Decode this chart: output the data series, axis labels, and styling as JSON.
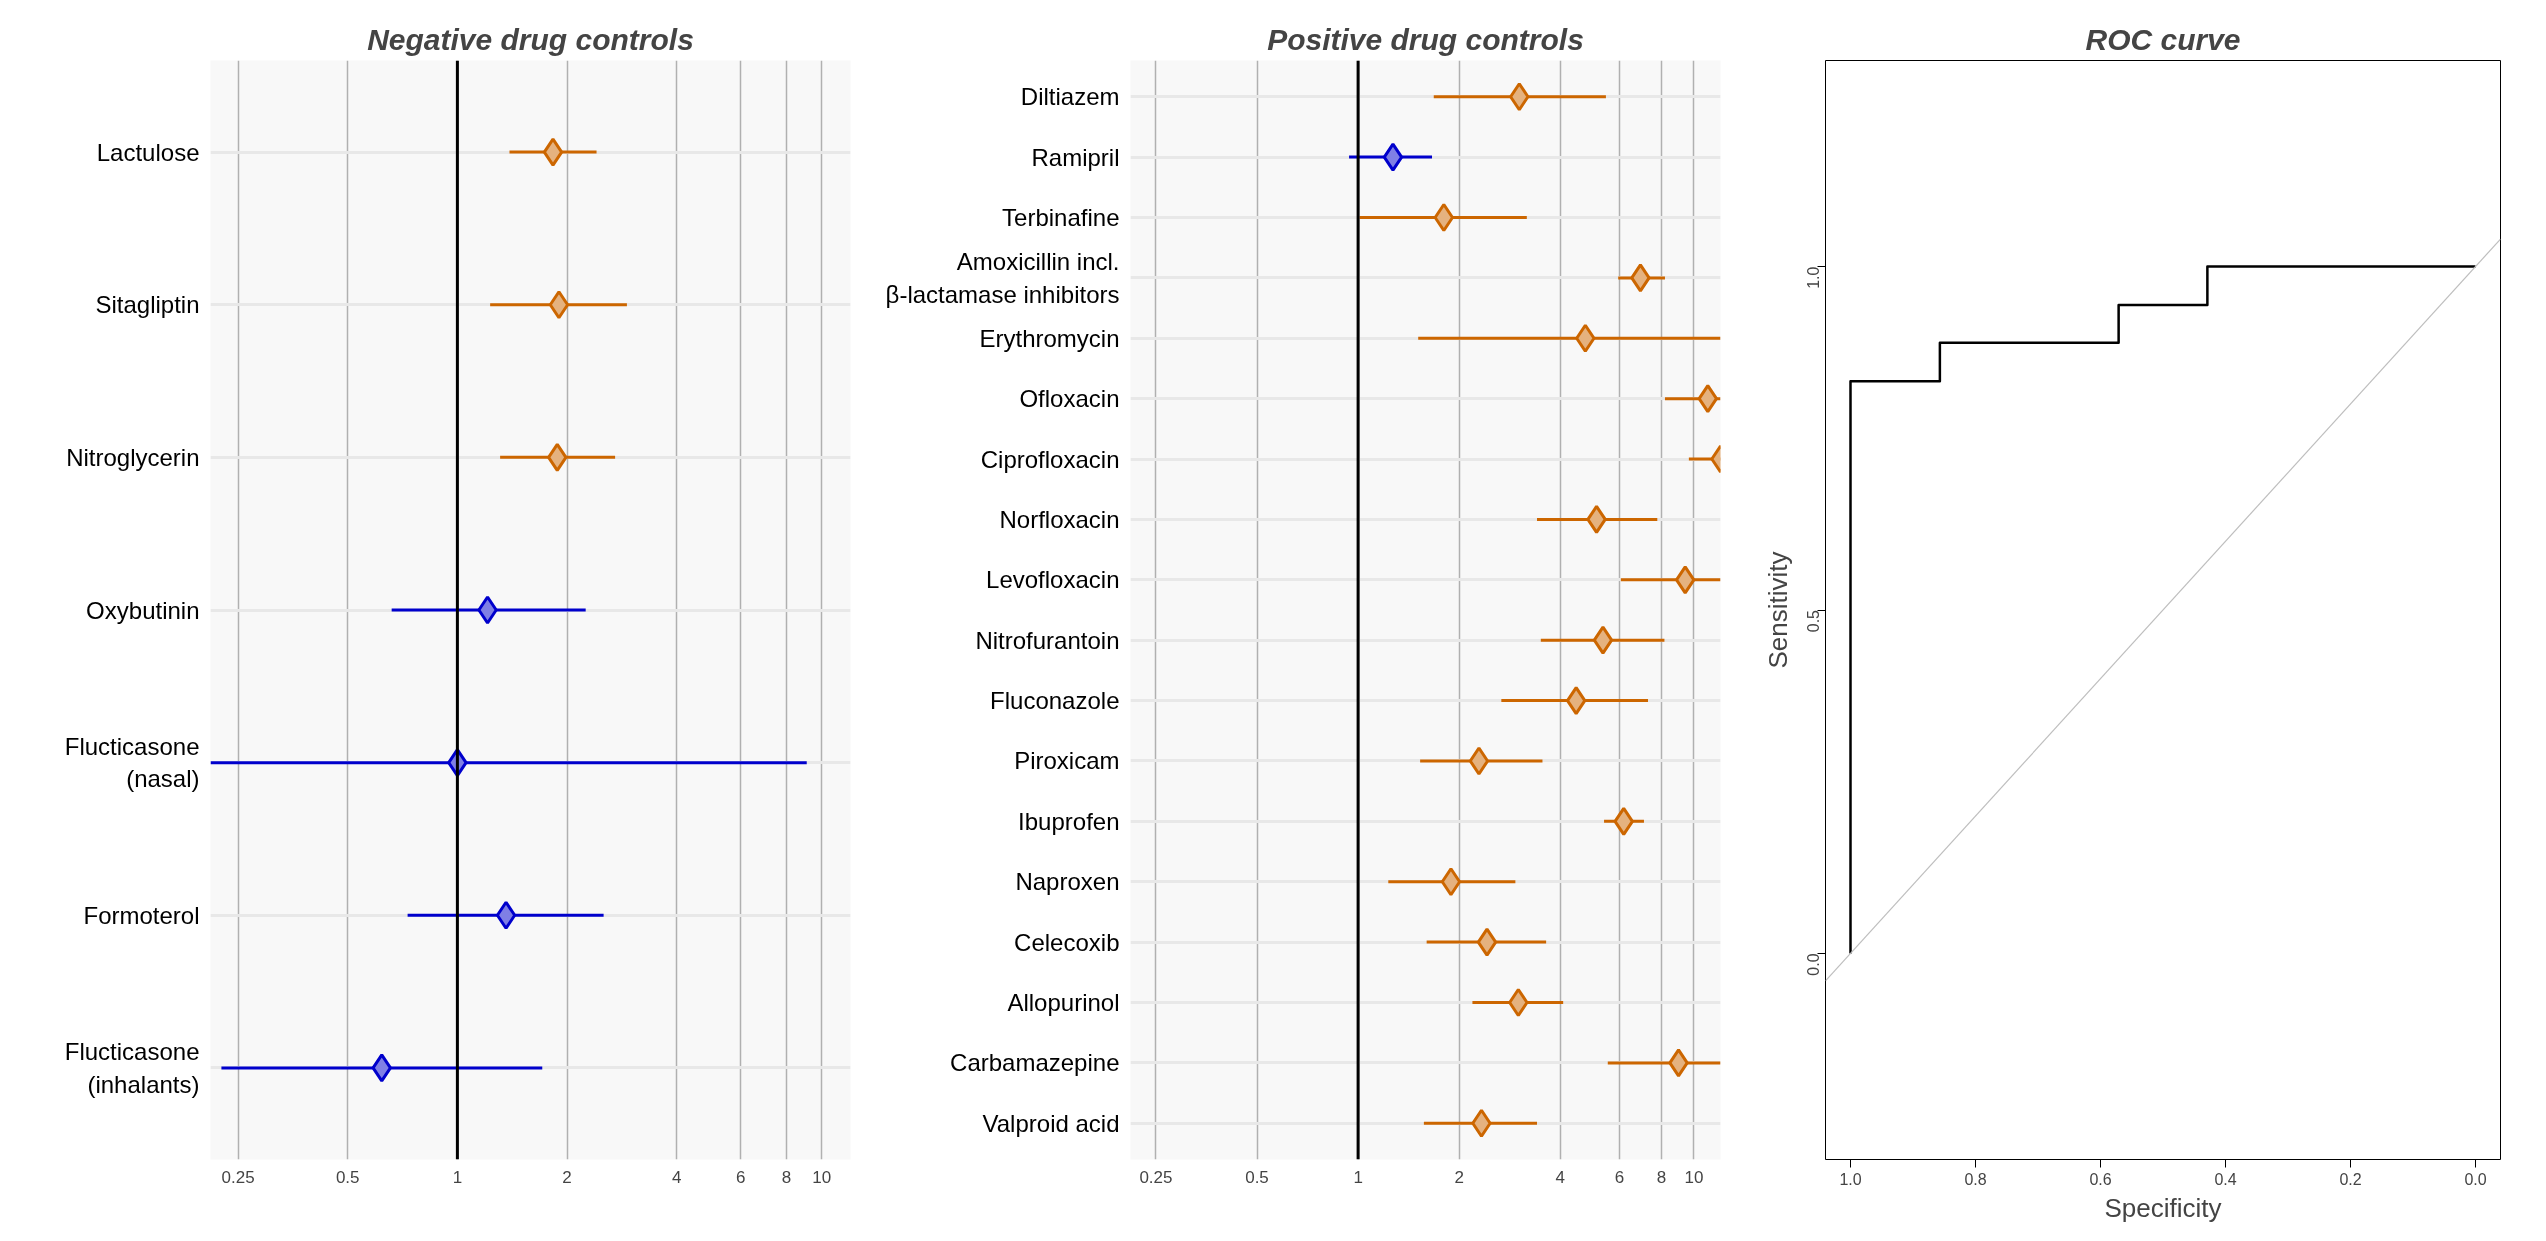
{
  "chart_data": [
    {
      "type": "scatter",
      "title": "Negative drug controls",
      "orientation": "horizontal",
      "log": "x",
      "marker": "diamond",
      "grid": true,
      "categories": [
        "Lactulose",
        "Sitagliptin",
        "Nitroglycerin",
        "Oxybutinin",
        "Flucticasone\n(nasal)",
        "Formoterol",
        "Flucticasone\n(inhalants)"
      ],
      "values": [
        1.83,
        1.9,
        1.88,
        1.21,
        1.0,
        1.36,
        0.62
      ],
      "colors": [
        "#cc6600",
        "#cc6600",
        "#cc6600",
        "#0000cc",
        "#0000cc",
        "#0000cc",
        "#0000cc"
      ],
      "errors": [
        [
          1.39,
          2.41
        ],
        [
          1.23,
          2.92
        ],
        [
          1.31,
          2.71
        ],
        [
          0.66,
          2.25
        ],
        [
          0.21,
          9.1
        ],
        [
          0.73,
          2.52
        ],
        [
          0.225,
          1.71
        ]
      ],
      "xlim": [
        0.21,
        12
      ],
      "xticks": [
        0.25,
        0.5,
        1,
        2,
        4,
        6,
        8,
        10
      ],
      "ref_lines": [
        {
          "axis": "x",
          "value": 1,
          "color": "#000000"
        }
      ]
    },
    {
      "type": "scatter",
      "title": "Positive drug controls",
      "orientation": "horizontal",
      "log": "x",
      "marker": "diamond",
      "grid": true,
      "categories": [
        "Diltiazem",
        "Ramipril",
        "Terbinafine",
        "Amoxicillin incl.\nβ-lactamase inhibitors",
        "Erythromycin",
        "Ofloxacin",
        "Ciprofloxacin",
        "Norfloxacin",
        "Levofloxacin",
        "Nitrofurantoin",
        "Fluconazole",
        "Piroxicam",
        "Ibuprofen",
        "Naproxen",
        "Celecoxib",
        "Allopurinol",
        "Carbamazepine",
        "Valproid acid"
      ],
      "values": [
        3.02,
        1.27,
        1.8,
        6.93,
        4.75,
        11.0,
        12.0,
        5.13,
        9.42,
        5.36,
        4.46,
        2.29,
        6.18,
        1.89,
        2.42,
        3.0,
        9.0,
        2.33
      ],
      "colors": [
        "#cc6600",
        "#0000cc",
        "#cc6600",
        "#cc6600",
        "#cc6600",
        "#cc6600",
        "#cc6600",
        "#cc6600",
        "#cc6600",
        "#cc6600",
        "#cc6600",
        "#cc6600",
        "#cc6600",
        "#cc6600",
        "#cc6600",
        "#cc6600",
        "#cc6600",
        "#cc6600"
      ],
      "errors": [
        [
          1.68,
          5.47
        ],
        [
          0.94,
          1.66
        ],
        [
          1.01,
          3.18
        ],
        [
          5.95,
          8.2
        ],
        [
          1.51,
          12
        ],
        [
          8.2,
          12
        ],
        [
          9.66,
          12
        ],
        [
          3.41,
          7.78
        ],
        [
          6.06,
          12
        ],
        [
          3.5,
          8.17
        ],
        [
          2.67,
          7.3
        ],
        [
          1.53,
          3.54
        ],
        [
          5.4,
          7.1
        ],
        [
          1.23,
          2.94
        ],
        [
          1.6,
          3.63
        ],
        [
          2.19,
          4.08
        ],
        [
          5.54,
          12
        ],
        [
          1.57,
          3.41
        ]
      ],
      "xlim": [
        0.21,
        12
      ],
      "xticks": [
        0.25,
        0.5,
        1,
        2,
        4,
        6,
        8,
        10
      ],
      "ref_lines": [
        {
          "axis": "x",
          "value": 1,
          "color": "#000000"
        }
      ]
    },
    {
      "type": "line",
      "title": "ROC curve",
      "xlabel": "Specificity",
      "ylabel": "Sensitivity",
      "grid": false,
      "series": [
        {
          "color": "#000000",
          "x": [
            1,
            1,
            0.857,
            0.857,
            0.571,
            0.571,
            0.429,
            0.429,
            0
          ],
          "values": [
            0,
            0.833,
            0.833,
            0.889,
            0.889,
            0.944,
            0.944,
            1,
            1
          ]
        },
        {
          "color": "#bebebe",
          "x": [
            1.04,
            -0.04
          ],
          "values": [
            -0.04,
            1.04
          ]
        }
      ],
      "xlim": [
        1.04,
        -0.04
      ],
      "ylim": [
        -0.3,
        1.3
      ],
      "xticks": [
        {
          "value": 1,
          "label": "1.0"
        },
        {
          "value": 0.8,
          "label": "0.8"
        },
        {
          "value": 0.6,
          "label": "0.6"
        },
        {
          "value": 0.4,
          "label": "0.4"
        },
        {
          "value": 0.2,
          "label": "0.2"
        },
        {
          "value": 0,
          "label": "0.0"
        }
      ],
      "yticks": [
        {
          "value": 0,
          "label": "0.0"
        },
        {
          "value": 0.5,
          "label": "0.5"
        },
        {
          "value": 1,
          "label": "1.0"
        }
      ]
    }
  ]
}
